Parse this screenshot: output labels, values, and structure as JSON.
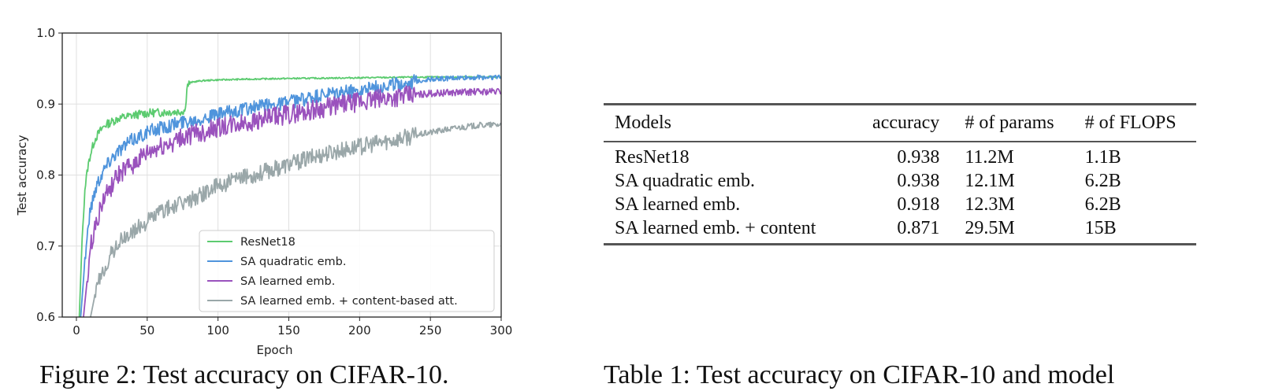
{
  "figure": {
    "caption": "Figure 2: Test accuracy on CIFAR-10."
  },
  "chart_data": {
    "type": "line",
    "xlabel": "Epoch",
    "ylabel": "Test accuracy",
    "xlim": [
      -10,
      300
    ],
    "ylim": [
      0.6,
      1.0
    ],
    "xticks": [
      0,
      50,
      100,
      150,
      200,
      250,
      300
    ],
    "yticks": [
      0.6,
      0.7,
      0.8,
      0.9,
      1.0
    ],
    "xtick_labels": [
      "0",
      "50",
      "100",
      "150",
      "200",
      "250",
      "300"
    ],
    "ytick_labels": [
      "0.6",
      "0.7",
      "0.8",
      "0.9",
      "1.0"
    ],
    "grid": true,
    "legend_position": "bottom-right",
    "series": [
      {
        "name": "ResNet18",
        "color": "#5ccb70",
        "x": [
          2,
          4,
          6,
          8,
          10,
          13,
          16,
          20,
          25,
          30,
          35,
          40,
          45,
          50,
          55,
          60,
          65,
          70,
          75,
          77,
          78,
          80,
          85,
          90,
          100,
          120,
          150,
          200,
          250,
          300
        ],
        "y": [
          0.6,
          0.71,
          0.78,
          0.81,
          0.83,
          0.85,
          0.86,
          0.87,
          0.875,
          0.88,
          0.882,
          0.884,
          0.886,
          0.887,
          0.888,
          0.888,
          0.889,
          0.889,
          0.89,
          0.892,
          0.925,
          0.93,
          0.932,
          0.933,
          0.934,
          0.935,
          0.936,
          0.937,
          0.938,
          0.938
        ]
      },
      {
        "name": "SA quadratic emb.",
        "color": "#4f94dc",
        "x": [
          3,
          6,
          9,
          12,
          15,
          20,
          25,
          30,
          40,
          50,
          60,
          70,
          80,
          100,
          125,
          150,
          175,
          200,
          225,
          250,
          275,
          300
        ],
        "y": [
          0.6,
          0.68,
          0.74,
          0.77,
          0.79,
          0.81,
          0.825,
          0.835,
          0.85,
          0.86,
          0.867,
          0.872,
          0.877,
          0.885,
          0.895,
          0.903,
          0.912,
          0.92,
          0.928,
          0.935,
          0.937,
          0.938
        ]
      },
      {
        "name": "SA learned emb.",
        "color": "#9a52bd",
        "x": [
          5,
          8,
          11,
          15,
          20,
          25,
          30,
          40,
          50,
          60,
          70,
          80,
          100,
          125,
          150,
          175,
          200,
          225,
          250,
          275,
          300
        ],
        "y": [
          0.6,
          0.66,
          0.71,
          0.74,
          0.77,
          0.785,
          0.8,
          0.815,
          0.83,
          0.84,
          0.848,
          0.856,
          0.866,
          0.876,
          0.886,
          0.895,
          0.903,
          0.91,
          0.915,
          0.917,
          0.918
        ]
      },
      {
        "name": "SA learned emb. + content-based att.",
        "color": "#9aa7a9",
        "x": [
          10,
          13,
          16,
          20,
          25,
          30,
          40,
          50,
          60,
          75,
          90,
          100,
          125,
          150,
          175,
          200,
          225,
          250,
          270,
          285,
          300
        ],
        "y": [
          0.6,
          0.63,
          0.65,
          0.67,
          0.69,
          0.705,
          0.72,
          0.735,
          0.75,
          0.76,
          0.775,
          0.785,
          0.8,
          0.815,
          0.83,
          0.84,
          0.85,
          0.86,
          0.867,
          0.87,
          0.871
        ]
      }
    ]
  },
  "table": {
    "caption": "Table 1: Test accuracy on CIFAR-10 and model",
    "headers": [
      "Models",
      "accuracy",
      "# of params",
      "# of FLOPS"
    ],
    "rows": [
      [
        "ResNet18",
        "0.938",
        "11.2M",
        "1.1B"
      ],
      [
        "SA quadratic emb.",
        "0.938",
        "12.1M",
        "6.2B"
      ],
      [
        "SA learned emb.",
        "0.918",
        "12.3M",
        "6.2B"
      ],
      [
        "SA learned emb. + content",
        "0.871",
        "29.5M",
        "15B"
      ]
    ]
  }
}
